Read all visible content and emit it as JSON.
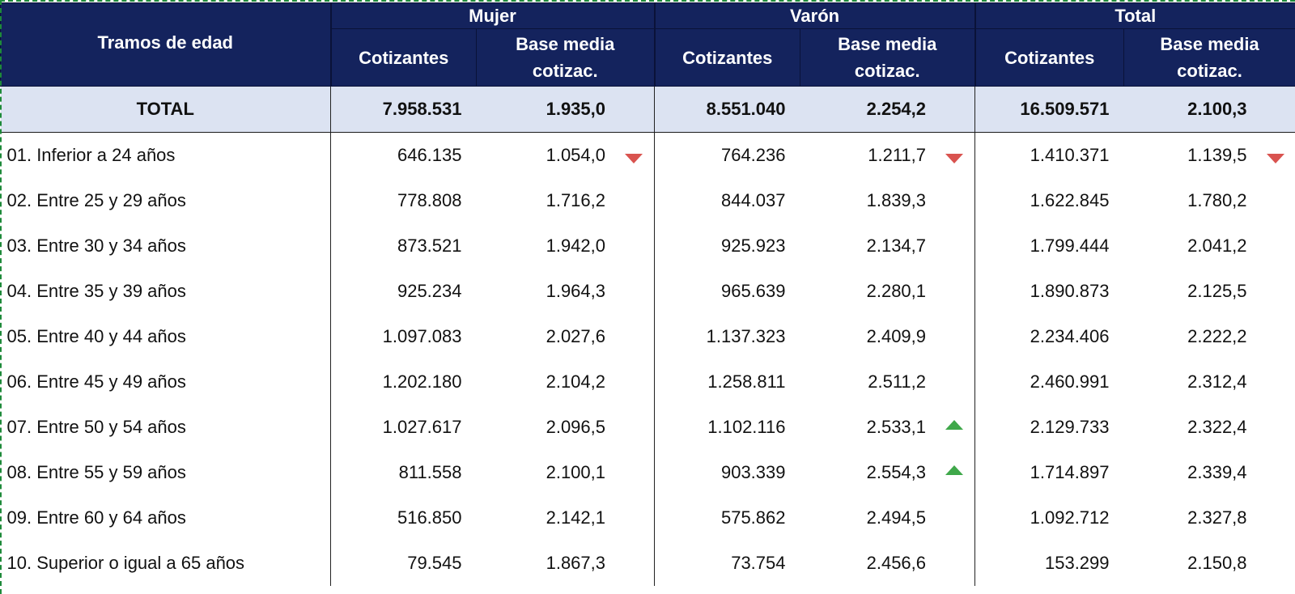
{
  "header": {
    "age_column": "Tramos de edad",
    "groups": [
      "Mujer",
      "Varón",
      "Total"
    ],
    "sub_cotizantes": "Cotizantes",
    "sub_base_line1": "Base media",
    "sub_base_line2": "cotizac."
  },
  "total_row": {
    "label": "TOTAL",
    "values": [
      "7.958.531",
      "1.935,0",
      "8.551.040",
      "2.254,2",
      "16.509.571",
      "2.100,3"
    ]
  },
  "rows": [
    {
      "label": "01. Inferior a 24 años",
      "values": [
        "646.135",
        "1.054,0",
        "764.236",
        "1.211,7",
        "1.410.371",
        "1.139,5"
      ],
      "markers": [
        "down",
        "down",
        "down"
      ]
    },
    {
      "label": "02. Entre 25 y 29 años",
      "values": [
        "778.808",
        "1.716,2",
        "844.037",
        "1.839,3",
        "1.622.845",
        "1.780,2"
      ],
      "markers": [
        "",
        "",
        ""
      ]
    },
    {
      "label": "03. Entre 30 y 34 años",
      "values": [
        "873.521",
        "1.942,0",
        "925.923",
        "2.134,7",
        "1.799.444",
        "2.041,2"
      ],
      "markers": [
        "",
        "",
        ""
      ]
    },
    {
      "label": "04. Entre 35 y 39 años",
      "values": [
        "925.234",
        "1.964,3",
        "965.639",
        "2.280,1",
        "1.890.873",
        "2.125,5"
      ],
      "markers": [
        "",
        "",
        ""
      ]
    },
    {
      "label": "05. Entre 40 y 44 años",
      "values": [
        "1.097.083",
        "2.027,6",
        "1.137.323",
        "2.409,9",
        "2.234.406",
        "2.222,2"
      ],
      "markers": [
        "",
        "",
        ""
      ]
    },
    {
      "label": "06. Entre 45 y 49 años",
      "values": [
        "1.202.180",
        "2.104,2",
        "1.258.811",
        "2.511,2",
        "2.460.991",
        "2.312,4"
      ],
      "markers": [
        "",
        "",
        ""
      ]
    },
    {
      "label": "07. Entre 50 y 54 años",
      "values": [
        "1.027.617",
        "2.096,5",
        "1.102.116",
        "2.533,1",
        "2.129.733",
        "2.322,4"
      ],
      "markers": [
        "",
        "up",
        ""
      ]
    },
    {
      "label": "08. Entre 55 y 59 años",
      "values": [
        "811.558",
        "2.100,1",
        "903.339",
        "2.554,3",
        "1.714.897",
        "2.339,4"
      ],
      "markers": [
        "",
        "up",
        ""
      ]
    },
    {
      "label": "09. Entre 60 y 64 años",
      "values": [
        "516.850",
        "2.142,1",
        "575.862",
        "2.494,5",
        "1.092.712",
        "2.327,8"
      ],
      "markers": [
        "",
        "",
        ""
      ]
    },
    {
      "label": "10. Superior o igual a 65 años",
      "values": [
        "79.545",
        "1.867,3",
        "73.754",
        "2.456,6",
        "153.299",
        "2.150,8"
      ],
      "markers": [
        "",
        "",
        ""
      ]
    }
  ],
  "colors": {
    "header_bg": "#14235d",
    "total_row_bg": "#dce3f2",
    "marker_down": "#d9534f",
    "marker_up": "#3fa84a",
    "selection_border": "#1e8a3a"
  }
}
